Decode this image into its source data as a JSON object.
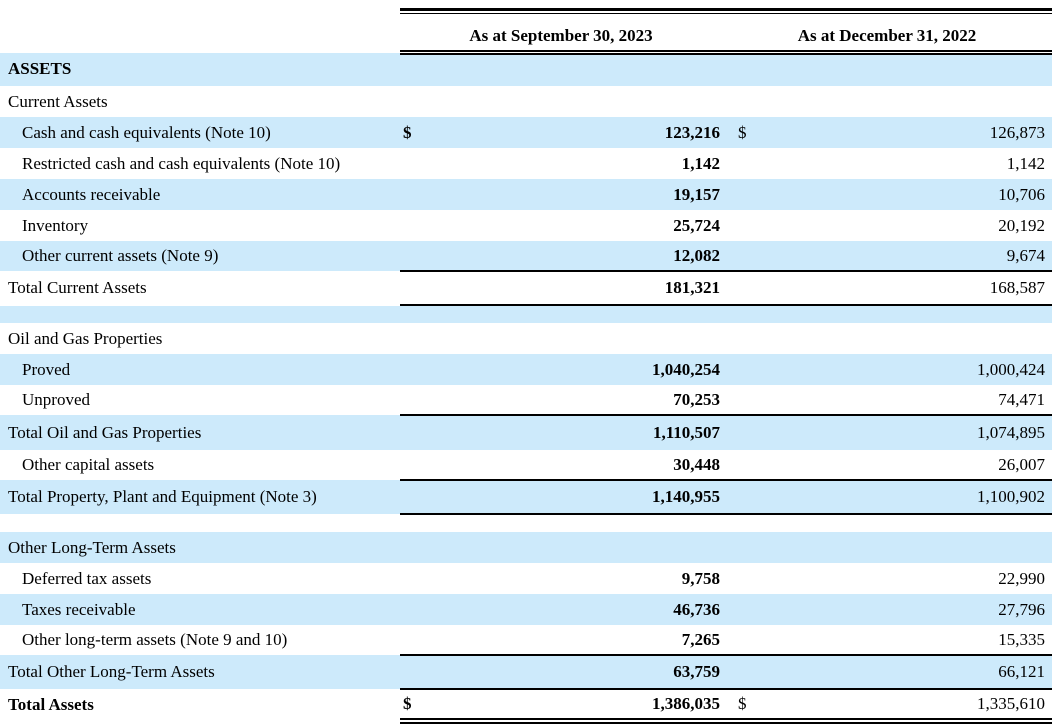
{
  "document": {
    "section_title": "ASSETS",
    "currency_symbol": "$"
  },
  "colors": {
    "row_highlight": "#cdeafb",
    "rule": "#000000",
    "text": "#000000",
    "background": "#ffffff"
  },
  "table": {
    "col_headers": [
      "As at September 30, 2023",
      "As at December 31, 2022"
    ],
    "rows": [
      {
        "label": "ASSETS",
        "type": "section",
        "bold": true,
        "indent": false,
        "shade": "blue",
        "cur1": "",
        "val1": "",
        "cur2": "",
        "val2": "",
        "rule": ""
      },
      {
        "label": "Current Assets",
        "type": "section",
        "bold": false,
        "indent": false,
        "shade": "white",
        "cur1": "",
        "val1": "",
        "cur2": "",
        "val2": "",
        "rule": ""
      },
      {
        "label": "Cash and cash equivalents (Note 10)",
        "type": "item",
        "bold": false,
        "indent": true,
        "shade": "blue",
        "cur1": "$",
        "val1": "123,216",
        "cur2": "$",
        "val2": "126,873",
        "rule": ""
      },
      {
        "label": "Restricted cash and cash equivalents (Note 10)",
        "type": "item",
        "bold": false,
        "indent": true,
        "shade": "white",
        "cur1": "",
        "val1": "1,142",
        "cur2": "",
        "val2": "1,142",
        "rule": ""
      },
      {
        "label": "Accounts receivable",
        "type": "item",
        "bold": false,
        "indent": true,
        "shade": "blue",
        "cur1": "",
        "val1": "19,157",
        "cur2": "",
        "val2": "10,706",
        "rule": ""
      },
      {
        "label": "Inventory",
        "type": "item",
        "bold": false,
        "indent": true,
        "shade": "white",
        "cur1": "",
        "val1": "25,724",
        "cur2": "",
        "val2": "20,192",
        "rule": ""
      },
      {
        "label": "Other current assets (Note 9)",
        "type": "item",
        "bold": false,
        "indent": true,
        "shade": "blue",
        "cur1": "",
        "val1": "12,082",
        "cur2": "",
        "val2": "9,674",
        "rule": "single"
      },
      {
        "label": "Total Current Assets",
        "type": "total",
        "bold": false,
        "indent": false,
        "shade": "white",
        "cur1": "",
        "val1": "181,321",
        "cur2": "",
        "val2": "168,587",
        "rule": "single"
      },
      {
        "label": "",
        "type": "spacer",
        "bold": false,
        "indent": false,
        "shade": "blue",
        "cur1": "",
        "val1": "",
        "cur2": "",
        "val2": "",
        "rule": ""
      },
      {
        "label": "Oil and Gas Properties",
        "type": "section",
        "bold": false,
        "indent": false,
        "shade": "white",
        "cur1": "",
        "val1": "",
        "cur2": "",
        "val2": "",
        "rule": ""
      },
      {
        "label": "Proved",
        "type": "item",
        "bold": false,
        "indent": true,
        "shade": "blue",
        "cur1": "",
        "val1": "1,040,254",
        "cur2": "",
        "val2": "1,000,424",
        "rule": ""
      },
      {
        "label": "Unproved",
        "type": "item",
        "bold": false,
        "indent": true,
        "shade": "white",
        "cur1": "",
        "val1": "70,253",
        "cur2": "",
        "val2": "74,471",
        "rule": "single"
      },
      {
        "label": "Total Oil and Gas Properties",
        "type": "total",
        "bold": false,
        "indent": false,
        "shade": "blue",
        "cur1": "",
        "val1": "1,110,507",
        "cur2": "",
        "val2": "1,074,895",
        "rule": ""
      },
      {
        "label": "Other capital assets",
        "type": "item",
        "bold": false,
        "indent": true,
        "shade": "white",
        "cur1": "",
        "val1": "30,448",
        "cur2": "",
        "val2": "26,007",
        "rule": "single"
      },
      {
        "label": "Total Property, Plant and Equipment (Note 3)",
        "type": "total",
        "bold": false,
        "indent": false,
        "shade": "blue",
        "cur1": "",
        "val1": "1,140,955",
        "cur2": "",
        "val2": "1,100,902",
        "rule": "single"
      },
      {
        "label": "",
        "type": "spacer",
        "bold": false,
        "indent": false,
        "shade": "white",
        "cur1": "",
        "val1": "",
        "cur2": "",
        "val2": "",
        "rule": ""
      },
      {
        "label": "Other Long-Term Assets",
        "type": "section",
        "bold": false,
        "indent": false,
        "shade": "blue",
        "cur1": "",
        "val1": "",
        "cur2": "",
        "val2": "",
        "rule": ""
      },
      {
        "label": "Deferred tax assets",
        "type": "item",
        "bold": false,
        "indent": true,
        "shade": "white",
        "cur1": "",
        "val1": "9,758",
        "cur2": "",
        "val2": "22,990",
        "rule": ""
      },
      {
        "label": "Taxes receivable",
        "type": "item",
        "bold": false,
        "indent": true,
        "shade": "blue",
        "cur1": "",
        "val1": "46,736",
        "cur2": "",
        "val2": "27,796",
        "rule": ""
      },
      {
        "label": "Other long-term assets (Note 9 and 10)",
        "type": "item",
        "bold": false,
        "indent": true,
        "shade": "white",
        "cur1": "",
        "val1": "7,265",
        "cur2": "",
        "val2": "15,335",
        "rule": "single"
      },
      {
        "label": "Total Other Long-Term Assets",
        "type": "total",
        "bold": false,
        "indent": false,
        "shade": "blue",
        "cur1": "",
        "val1": "63,759",
        "cur2": "",
        "val2": "66,121",
        "rule": "single"
      },
      {
        "label": "Total Assets",
        "type": "total",
        "bold": true,
        "indent": false,
        "shade": "white",
        "cur1": "$",
        "val1": "1,386,035",
        "cur2": "$",
        "val2": "1,335,610",
        "rule": "double"
      }
    ]
  }
}
